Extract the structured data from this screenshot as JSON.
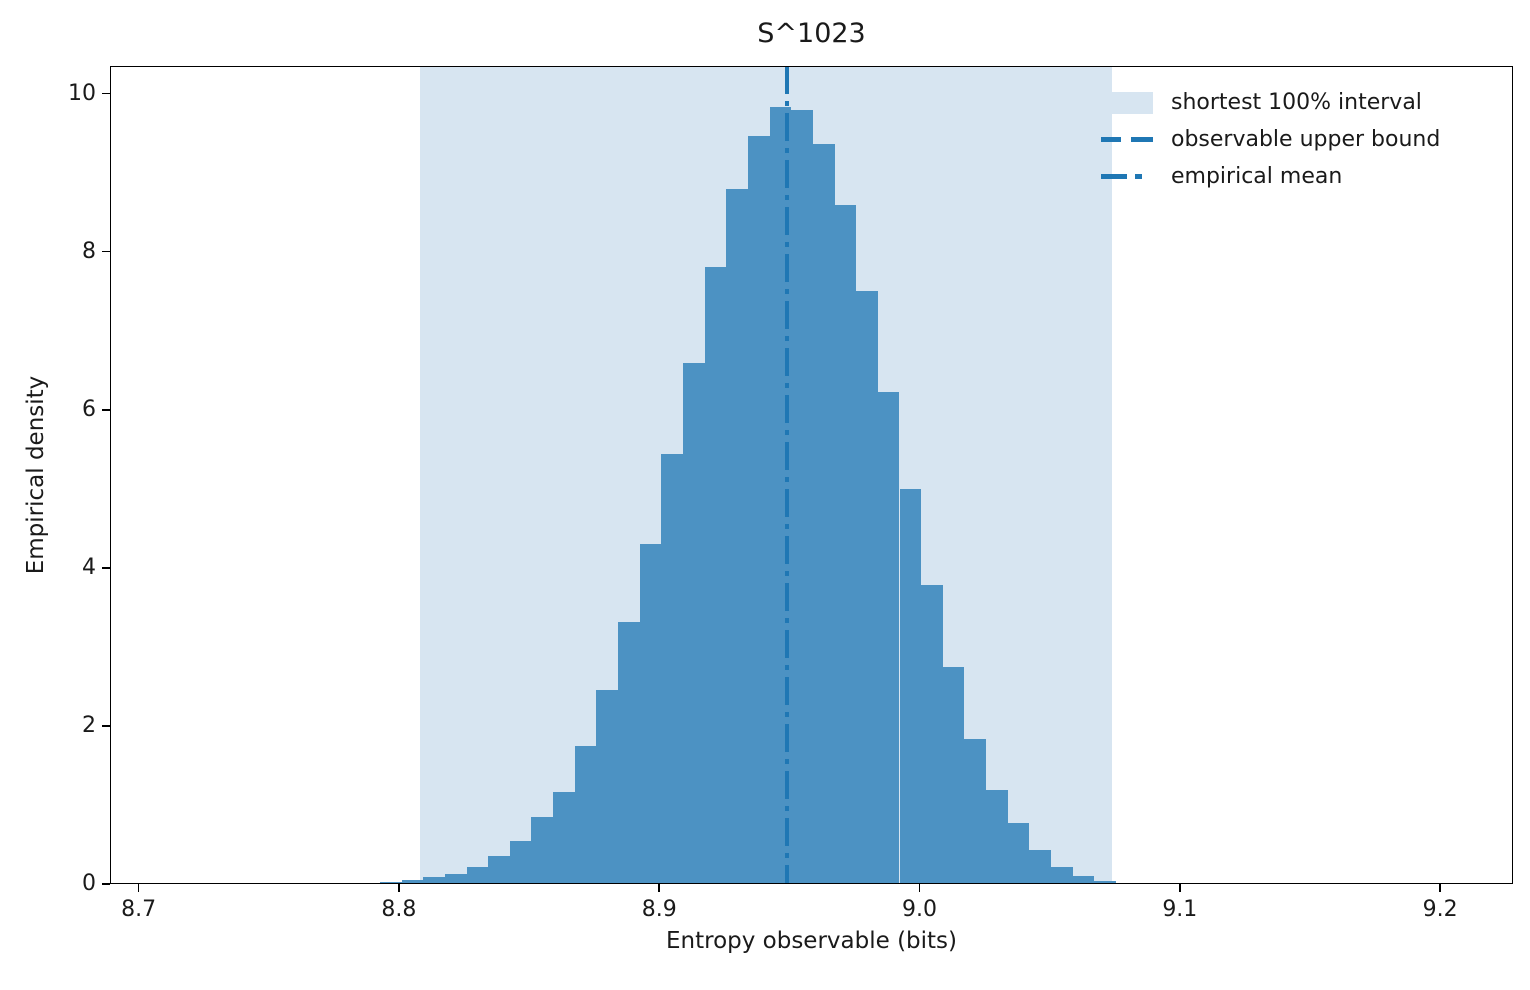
{
  "colors": {
    "bar": "#4C92C3",
    "interval_fill": "#D7E5F1",
    "line": "#1F77B4",
    "text": "#1A1A1A",
    "spine": "#000000"
  },
  "chart_data": {
    "type": "bar",
    "subtype": "histogram",
    "title": "S^1023",
    "xlabel": "Entropy observable (bits)",
    "ylabel": "Empirical density",
    "xlim": [
      8.689,
      9.228
    ],
    "ylim": [
      0,
      10.35
    ],
    "xticks": [
      "8.7",
      "8.8",
      "8.9",
      "9.0",
      "9.1",
      "9.2"
    ],
    "yticks": [
      "0",
      "2",
      "4",
      "6",
      "8",
      "10"
    ],
    "grid": false,
    "legend_position": "upper right",
    "histogram": {
      "bin_start": 8.7927,
      "bin_width": 0.008317,
      "densities": [
        0.02,
        0.05,
        0.09,
        0.13,
        0.22,
        0.35,
        0.55,
        0.85,
        1.17,
        1.74,
        2.45,
        3.32,
        4.3,
        5.44,
        6.59,
        7.81,
        8.8,
        9.47,
        9.83,
        9.79,
        9.36,
        8.59,
        7.5,
        6.22,
        5.0,
        3.78,
        2.74,
        1.84,
        1.19,
        0.77,
        0.43,
        0.21,
        0.1,
        0.04,
        0.01
      ]
    },
    "interval": {
      "label": "shortest 100% interval",
      "start": 8.808,
      "end": 9.074
    },
    "upper_bound": {
      "label": "observable upper bound",
      "x": 8.949,
      "style": "dashed"
    },
    "mean": {
      "label": "empirical mean",
      "x": 8.949,
      "style": "dashdot"
    },
    "legend": [
      {
        "label": "shortest 100% interval",
        "swatch": "patch"
      },
      {
        "label": "observable upper bound",
        "swatch": "dashed-line"
      },
      {
        "label": "empirical mean",
        "swatch": "dashdot-line"
      }
    ]
  }
}
